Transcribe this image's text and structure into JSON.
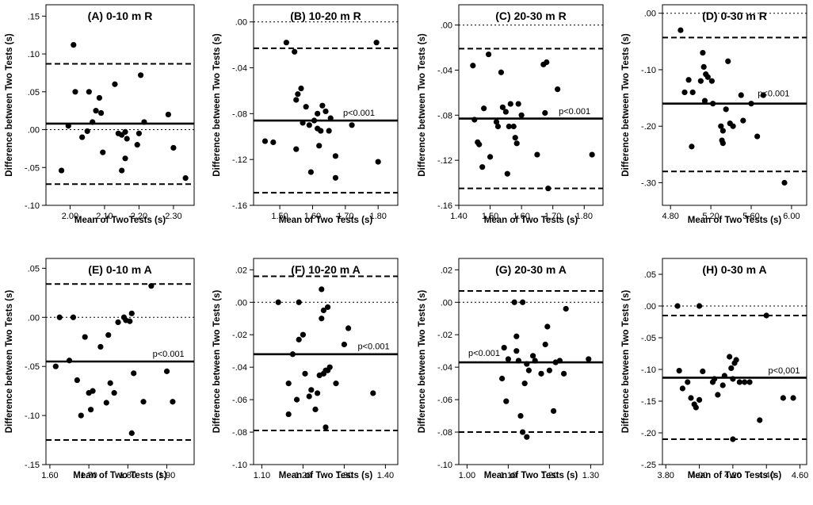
{
  "chart_data": [
    {
      "type": "scatter",
      "title": "(A) 0-10 m R",
      "xlabel": "Mean of TwoTests (s)",
      "ylabel": "Difference between Two Tests (s)",
      "xlim": [
        1.93,
        2.36
      ],
      "ylim": [
        -0.1,
        0.165
      ],
      "xticks": [
        2.0,
        2.1,
        2.2,
        2.3
      ],
      "xtick_labels": [
        "2.00",
        "2.10",
        "2.20",
        "2.30"
      ],
      "yticks": [
        -0.1,
        -0.05,
        0.0,
        0.05,
        0.1,
        0.15
      ],
      "ytick_labels": [
        "-.10",
        "-.05",
        ".00",
        ".05",
        ".10",
        ".15"
      ],
      "mean": 0.008,
      "upper_loa": 0.087,
      "lower_loa": -0.072,
      "zero": 0.0,
      "p_note": "",
      "p_note_anchor": [
        2.0,
        0.0
      ],
      "points": [
        [
          1.975,
          -0.054
        ],
        [
          1.995,
          0.005
        ],
        [
          2.01,
          0.112
        ],
        [
          2.015,
          0.05
        ],
        [
          2.035,
          -0.01
        ],
        [
          2.05,
          -0.002
        ],
        [
          2.055,
          0.05
        ],
        [
          2.065,
          0.01
        ],
        [
          2.075,
          0.025
        ],
        [
          2.085,
          0.042
        ],
        [
          2.09,
          0.022
        ],
        [
          2.095,
          -0.03
        ],
        [
          2.13,
          0.06
        ],
        [
          2.14,
          -0.005
        ],
        [
          2.15,
          -0.007
        ],
        [
          2.15,
          -0.054
        ],
        [
          2.16,
          -0.003
        ],
        [
          2.16,
          -0.038
        ],
        [
          2.165,
          -0.012
        ],
        [
          2.195,
          -0.02
        ],
        [
          2.2,
          -0.005
        ],
        [
          2.205,
          0.072
        ],
        [
          2.215,
          0.01
        ],
        [
          2.285,
          0.02
        ],
        [
          2.3,
          -0.024
        ],
        [
          2.335,
          -0.064
        ]
      ]
    },
    {
      "type": "scatter",
      "title": "(B) 10-20 m R",
      "xlabel": "Mean of Two Tests (s)",
      "ylabel": "Difference between Two Tests (s)",
      "xlim": [
        1.42,
        1.86
      ],
      "ylim": [
        -0.16,
        0.015
      ],
      "xticks": [
        1.5,
        1.6,
        1.7,
        1.8
      ],
      "xtick_labels": [
        "1.50",
        "1.60",
        "1.70",
        "1.80"
      ],
      "yticks": [
        -0.16,
        -0.12,
        -0.08,
        -0.04,
        0.0
      ],
      "ytick_labels": [
        "-.16",
        "-.12",
        "-.08",
        "-.04",
        ".00"
      ],
      "mean": -0.086,
      "upper_loa": -0.023,
      "lower_loa": -0.149,
      "zero": 0.0,
      "p_note": "p<0.001",
      "p_note_anchor": [
        1.79,
        -0.082
      ],
      "points": [
        [
          1.455,
          -0.104
        ],
        [
          1.48,
          -0.105
        ],
        [
          1.52,
          -0.018
        ],
        [
          1.545,
          -0.026
        ],
        [
          1.55,
          -0.068
        ],
        [
          1.55,
          -0.111
        ],
        [
          1.555,
          -0.063
        ],
        [
          1.565,
          -0.058
        ],
        [
          1.57,
          -0.088
        ],
        [
          1.58,
          -0.074
        ],
        [
          1.59,
          -0.09
        ],
        [
          1.595,
          -0.131
        ],
        [
          1.605,
          -0.086
        ],
        [
          1.615,
          -0.093
        ],
        [
          1.615,
          -0.08
        ],
        [
          1.62,
          -0.108
        ],
        [
          1.625,
          -0.095
        ],
        [
          1.63,
          -0.073
        ],
        [
          1.64,
          -0.078
        ],
        [
          1.65,
          -0.095
        ],
        [
          1.655,
          -0.084
        ],
        [
          1.67,
          -0.117
        ],
        [
          1.67,
          -0.136
        ],
        [
          1.72,
          -0.09
        ],
        [
          1.795,
          -0.018
        ],
        [
          1.8,
          -0.122
        ]
      ]
    },
    {
      "type": "scatter",
      "title": "(C) 20-30 m R",
      "xlabel": "Mean of Two Tests (s)",
      "ylabel": "Difference between Two Tests (s)",
      "xlim": [
        1.4,
        1.86
      ],
      "ylim": [
        -0.16,
        0.018
      ],
      "xticks": [
        1.4,
        1.5,
        1.6,
        1.7,
        1.8
      ],
      "xtick_labels": [
        "1.40",
        "1.50",
        "1.60",
        "1.70",
        "1.80"
      ],
      "yticks": [
        -0.16,
        -0.12,
        -0.08,
        -0.04,
        0.0
      ],
      "ytick_labels": [
        "-.16",
        "-.12",
        "-.08",
        "-.04",
        ".00"
      ],
      "mean": -0.083,
      "upper_loa": -0.021,
      "lower_loa": -0.145,
      "zero": 0.0,
      "p_note": "p<0.001",
      "p_note_anchor": [
        1.82,
        -0.079
      ],
      "points": [
        [
          1.445,
          -0.036
        ],
        [
          1.45,
          -0.084
        ],
        [
          1.46,
          -0.104
        ],
        [
          1.465,
          -0.106
        ],
        [
          1.475,
          -0.126
        ],
        [
          1.48,
          -0.074
        ],
        [
          1.495,
          -0.026
        ],
        [
          1.5,
          -0.117
        ],
        [
          1.52,
          -0.086
        ],
        [
          1.525,
          -0.09
        ],
        [
          1.535,
          -0.042
        ],
        [
          1.54,
          -0.073
        ],
        [
          1.55,
          -0.077
        ],
        [
          1.555,
          -0.132
        ],
        [
          1.56,
          -0.09
        ],
        [
          1.565,
          -0.07
        ],
        [
          1.575,
          -0.09
        ],
        [
          1.58,
          -0.1
        ],
        [
          1.585,
          -0.105
        ],
        [
          1.59,
          -0.07
        ],
        [
          1.6,
          -0.08
        ],
        [
          1.65,
          -0.115
        ],
        [
          1.67,
          -0.035
        ],
        [
          1.675,
          -0.078
        ],
        [
          1.68,
          -0.033
        ],
        [
          1.685,
          -0.145
        ],
        [
          1.715,
          -0.057
        ],
        [
          1.825,
          -0.115
        ]
      ]
    },
    {
      "type": "scatter",
      "title": "(D) 0-30 m R",
      "xlabel": "Mean of Two Tests (s)",
      "ylabel": "Difference between Two Tests (s)",
      "xlim": [
        4.72,
        6.15
      ],
      "ylim": [
        -0.34,
        0.015
      ],
      "xticks": [
        4.8,
        5.2,
        5.6,
        6.0
      ],
      "xtick_labels": [
        "4.80",
        "5.20",
        "5.60",
        "6.00"
      ],
      "yticks": [
        -0.3,
        -0.2,
        -0.1,
        0.0
      ],
      "ytick_labels": [
        "-.30",
        "-.20",
        "-.10",
        ".00"
      ],
      "mean": -0.16,
      "upper_loa": -0.043,
      "lower_loa": -0.28,
      "zero": 0.0,
      "p_note": "p<0.001",
      "p_note_anchor": [
        5.98,
        -0.147
      ],
      "points": [
        [
          4.9,
          -0.03
        ],
        [
          4.94,
          -0.14
        ],
        [
          4.98,
          -0.118
        ],
        [
          5.01,
          -0.236
        ],
        [
          5.02,
          -0.14
        ],
        [
          5.1,
          -0.12
        ],
        [
          5.12,
          -0.07
        ],
        [
          5.13,
          -0.095
        ],
        [
          5.14,
          -0.155
        ],
        [
          5.15,
          -0.108
        ],
        [
          5.17,
          -0.113
        ],
        [
          5.21,
          -0.12
        ],
        [
          5.22,
          -0.16
        ],
        [
          5.3,
          -0.2
        ],
        [
          5.31,
          -0.225
        ],
        [
          5.32,
          -0.208
        ],
        [
          5.32,
          -0.23
        ],
        [
          5.35,
          -0.17
        ],
        [
          5.37,
          -0.085
        ],
        [
          5.39,
          -0.195
        ],
        [
          5.42,
          -0.2
        ],
        [
          5.5,
          -0.145
        ],
        [
          5.52,
          -0.19
        ],
        [
          5.6,
          -0.16
        ],
        [
          5.66,
          -0.218
        ],
        [
          5.72,
          -0.145
        ],
        [
          5.93,
          -0.3
        ]
      ]
    },
    {
      "type": "scatter",
      "title": "(E) 0-10 m A",
      "xlabel": "Mean of Two Tests (s)",
      "ylabel": "Difference between Two Tests (s)",
      "xlim": [
        1.59,
        1.97
      ],
      "ylim": [
        -0.15,
        0.06
      ],
      "xticks": [
        1.6,
        1.7,
        1.8,
        1.9
      ],
      "xtick_labels": [
        "1.60",
        "1.70",
        "1.80",
        "1.90"
      ],
      "yticks": [
        -0.15,
        -0.1,
        -0.05,
        0.0,
        0.05
      ],
      "ytick_labels": [
        "-.15",
        "-.10",
        "-.05",
        ".00",
        ".05"
      ],
      "mean": -0.045,
      "upper_loa": 0.034,
      "lower_loa": -0.125,
      "zero": 0.0,
      "p_note": "p<0.001",
      "p_note_anchor": [
        1.945,
        -0.04
      ],
      "points": [
        [
          1.615,
          -0.05
        ],
        [
          1.625,
          0.0
        ],
        [
          1.65,
          -0.044
        ],
        [
          1.66,
          0.0
        ],
        [
          1.67,
          -0.064
        ],
        [
          1.68,
          -0.1
        ],
        [
          1.69,
          -0.02
        ],
        [
          1.7,
          -0.077
        ],
        [
          1.705,
          -0.094
        ],
        [
          1.71,
          -0.075
        ],
        [
          1.73,
          -0.03
        ],
        [
          1.745,
          -0.087
        ],
        [
          1.75,
          -0.018
        ],
        [
          1.755,
          -0.067
        ],
        [
          1.765,
          -0.077
        ],
        [
          1.775,
          -0.005
        ],
        [
          1.79,
          0.0
        ],
        [
          1.795,
          -0.003
        ],
        [
          1.805,
          -0.004
        ],
        [
          1.81,
          -0.118
        ],
        [
          1.81,
          0.004
        ],
        [
          1.815,
          -0.057
        ],
        [
          1.84,
          -0.086
        ],
        [
          1.86,
          0.032
        ],
        [
          1.9,
          -0.055
        ],
        [
          1.915,
          -0.086
        ]
      ]
    },
    {
      "type": "scatter",
      "title": "(F) 10-20 m A",
      "xlabel": "Mean of Two Tests (s)",
      "ylabel": "Difference between Two Tests (s)",
      "xlim": [
        1.08,
        1.43
      ],
      "ylim": [
        -0.1,
        0.027
      ],
      "xticks": [
        1.1,
        1.2,
        1.3,
        1.4
      ],
      "xtick_labels": [
        "1.10",
        "1.20",
        "1.30",
        "1.40"
      ],
      "yticks": [
        -0.1,
        -0.08,
        -0.06,
        -0.04,
        -0.02,
        0.0,
        0.02
      ],
      "ytick_labels": [
        "-.10",
        "-.08",
        "-.06",
        "-.04",
        "-.02",
        ".00",
        ".02"
      ],
      "mean": -0.032,
      "upper_loa": 0.016,
      "lower_loa": -0.079,
      "zero": 0.0,
      "p_note": "p<0.001",
      "p_note_anchor": [
        1.41,
        -0.029
      ],
      "points": [
        [
          1.14,
          0.0
        ],
        [
          1.165,
          -0.05
        ],
        [
          1.165,
          -0.069
        ],
        [
          1.175,
          -0.032
        ],
        [
          1.185,
          -0.06
        ],
        [
          1.19,
          0.0
        ],
        [
          1.19,
          -0.023
        ],
        [
          1.2,
          -0.02
        ],
        [
          1.205,
          -0.044
        ],
        [
          1.215,
          -0.058
        ],
        [
          1.22,
          -0.054
        ],
        [
          1.23,
          -0.066
        ],
        [
          1.235,
          -0.056
        ],
        [
          1.24,
          -0.045
        ],
        [
          1.245,
          0.008
        ],
        [
          1.245,
          -0.01
        ],
        [
          1.25,
          -0.005
        ],
        [
          1.25,
          -0.044
        ],
        [
          1.255,
          -0.077
        ],
        [
          1.255,
          -0.042
        ],
        [
          1.26,
          -0.003
        ],
        [
          1.26,
          -0.042
        ],
        [
          1.265,
          -0.04
        ],
        [
          1.28,
          -0.05
        ],
        [
          1.3,
          -0.026
        ],
        [
          1.31,
          -0.016
        ],
        [
          1.37,
          -0.056
        ]
      ]
    },
    {
      "type": "scatter",
      "title": "(G) 20-30 m A",
      "xlabel": "Mean of Two Tests (s)",
      "ylabel": "Difference between Two Tests (s)",
      "xlim": [
        0.98,
        1.33
      ],
      "ylim": [
        -0.1,
        0.027
      ],
      "xticks": [
        1.0,
        1.1,
        1.2,
        1.3
      ],
      "xtick_labels": [
        "1.00",
        "1.10",
        "1.20",
        "1.30"
      ],
      "yticks": [
        -0.1,
        -0.08,
        -0.06,
        -0.04,
        -0.02,
        0.0,
        0.02
      ],
      "ytick_labels": [
        "-.10",
        "-.08",
        "-.06",
        "-.04",
        "-.02",
        ".00",
        ".02"
      ],
      "mean": -0.037,
      "upper_loa": 0.007,
      "lower_loa": -0.08,
      "zero": 0.0,
      "p_note": "p<0.001",
      "p_note_anchor": [
        1.003,
        -0.033
      ],
      "points": [
        [
          1.085,
          -0.047
        ],
        [
          1.09,
          -0.028
        ],
        [
          1.095,
          -0.061
        ],
        [
          1.1,
          -0.035
        ],
        [
          1.115,
          0.0
        ],
        [
          1.12,
          -0.021
        ],
        [
          1.12,
          -0.03
        ],
        [
          1.125,
          -0.036
        ],
        [
          1.13,
          -0.07
        ],
        [
          1.135,
          -0.08
        ],
        [
          1.135,
          0.0
        ],
        [
          1.14,
          -0.05
        ],
        [
          1.145,
          -0.083
        ],
        [
          1.145,
          -0.038
        ],
        [
          1.15,
          -0.042
        ],
        [
          1.16,
          -0.033
        ],
        [
          1.165,
          -0.036
        ],
        [
          1.18,
          -0.044
        ],
        [
          1.19,
          -0.026
        ],
        [
          1.195,
          -0.015
        ],
        [
          1.2,
          -0.042
        ],
        [
          1.21,
          -0.067
        ],
        [
          1.215,
          -0.037
        ],
        [
          1.225,
          -0.036
        ],
        [
          1.235,
          -0.044
        ],
        [
          1.24,
          -0.004
        ],
        [
          1.295,
          -0.035
        ]
      ]
    },
    {
      "type": "scatter",
      "title": "(H) 0-30 m A",
      "xlabel": "Mean of Two Tests (s)",
      "ylabel": "Difference between Two Tests (s)",
      "xlim": [
        3.78,
        4.64
      ],
      "ylim": [
        -0.25,
        0.075
      ],
      "xticks": [
        3.8,
        4.0,
        4.2,
        4.4,
        4.6
      ],
      "xtick_labels": [
        "3.80",
        "4.00",
        "4.20",
        "4.40",
        "4.60"
      ],
      "yticks": [
        -0.25,
        -0.2,
        -0.15,
        -0.1,
        -0.05,
        0.0,
        0.05
      ],
      "ytick_labels": [
        "-.25",
        "-.20",
        "-.15",
        "-.10",
        "-.05",
        ".00",
        ".05"
      ],
      "mean": -0.113,
      "upper_loa": -0.015,
      "lower_loa": -0.21,
      "zero": 0.0,
      "p_note": "p<0,001",
      "p_note_anchor": [
        4.6,
        -0.106
      ],
      "points": [
        [
          3.87,
          0.0
        ],
        [
          3.88,
          -0.102
        ],
        [
          3.9,
          -0.13
        ],
        [
          3.93,
          -0.12
        ],
        [
          3.95,
          -0.145
        ],
        [
          3.97,
          -0.155
        ],
        [
          3.98,
          -0.16
        ],
        [
          4.0,
          0.0
        ],
        [
          4.0,
          -0.148
        ],
        [
          4.02,
          -0.103
        ],
        [
          4.08,
          -0.12
        ],
        [
          4.09,
          -0.115
        ],
        [
          4.11,
          -0.14
        ],
        [
          4.14,
          -0.125
        ],
        [
          4.15,
          -0.11
        ],
        [
          4.18,
          -0.08
        ],
        [
          4.19,
          -0.098
        ],
        [
          4.2,
          -0.115
        ],
        [
          4.2,
          -0.21
        ],
        [
          4.21,
          -0.09
        ],
        [
          4.22,
          -0.085
        ],
        [
          4.24,
          -0.12
        ],
        [
          4.27,
          -0.12
        ],
        [
          4.3,
          -0.12
        ],
        [
          4.36,
          -0.18
        ],
        [
          4.4,
          -0.015
        ],
        [
          4.5,
          -0.145
        ],
        [
          4.56,
          -0.145
        ]
      ]
    }
  ]
}
